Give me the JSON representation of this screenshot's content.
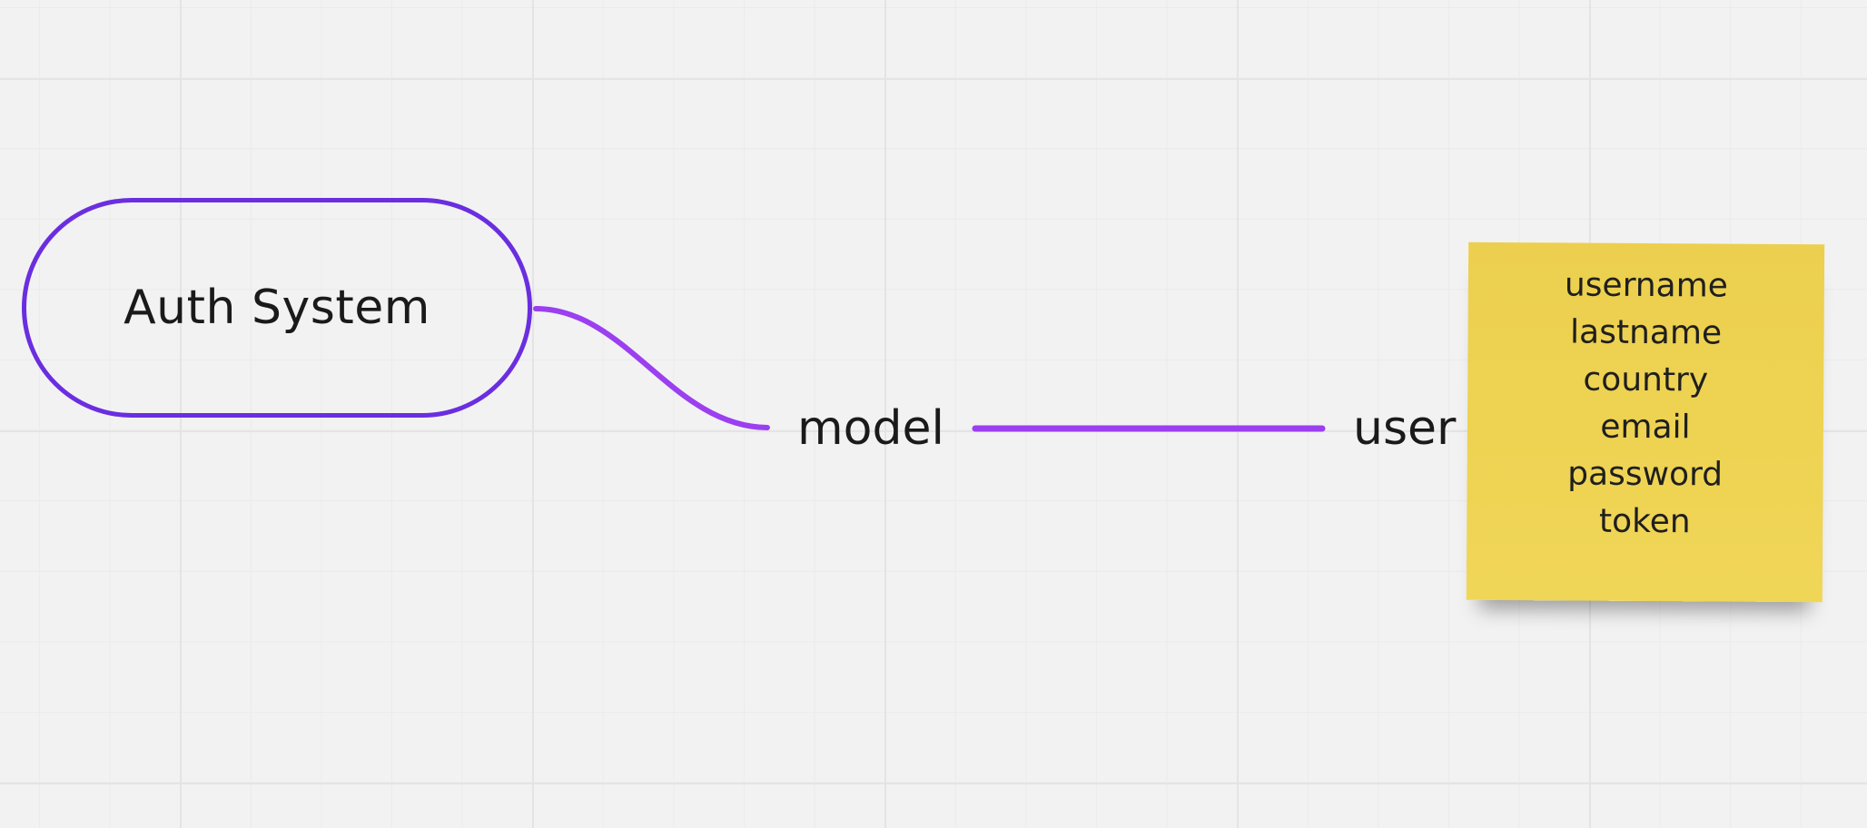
{
  "diagram": {
    "root": {
      "label": "Auth System"
    },
    "branch": {
      "label": "model"
    },
    "leaf": {
      "label": "user"
    },
    "sticky_note": {
      "lines": [
        "username",
        "lastname",
        "country",
        "email",
        "password",
        "token"
      ]
    }
  },
  "colors": {
    "root_border": "#6a2ee0",
    "connector": "#9b3ff0",
    "sticky_note": "#eccf4e",
    "canvas_background": "#f2f2f2"
  }
}
